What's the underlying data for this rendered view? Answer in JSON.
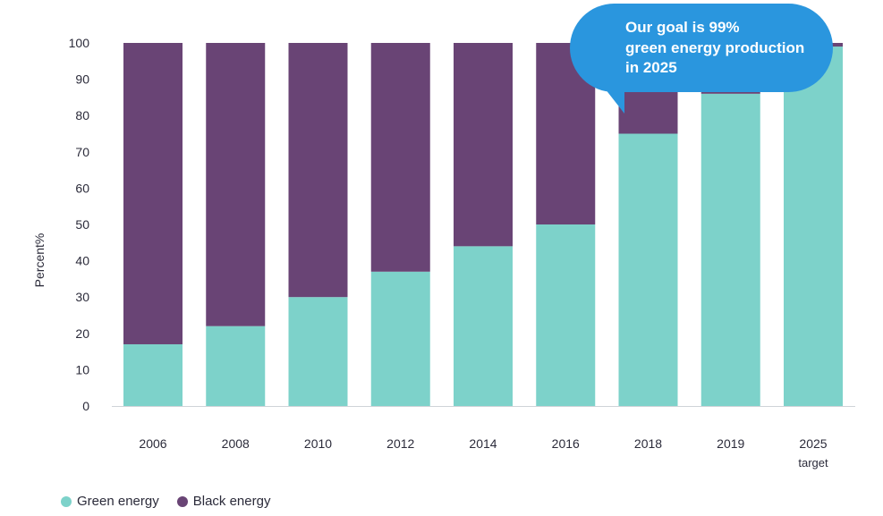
{
  "chart_data": {
    "type": "bar",
    "stacked": true,
    "categories": [
      "2006",
      "2008",
      "2010",
      "2012",
      "2014",
      "2016",
      "2018",
      "2019",
      "2025"
    ],
    "category_sublabels": [
      "",
      "",
      "",
      "",
      "",
      "",
      "",
      "",
      "target"
    ],
    "series": [
      {
        "name": "Green energy",
        "color": "#7dd2ca",
        "values": [
          17,
          22,
          30,
          37,
          44,
          50,
          75,
          86,
          99
        ]
      },
      {
        "name": "Black energy",
        "color": "#694475",
        "values": [
          83,
          78,
          70,
          63,
          56,
          50,
          25,
          14,
          1
        ]
      }
    ],
    "ylabel": "Percent%",
    "xlabel": "",
    "ylim": [
      0,
      100
    ],
    "yticks": [
      0,
      10,
      20,
      30,
      40,
      50,
      60,
      70,
      80,
      90,
      100
    ],
    "grid": false,
    "legend_position": "bottom-left"
  },
  "callout": {
    "lines": [
      "Our goal is 99%",
      "green energy production",
      "in 2025"
    ],
    "color": "#2a96de"
  }
}
